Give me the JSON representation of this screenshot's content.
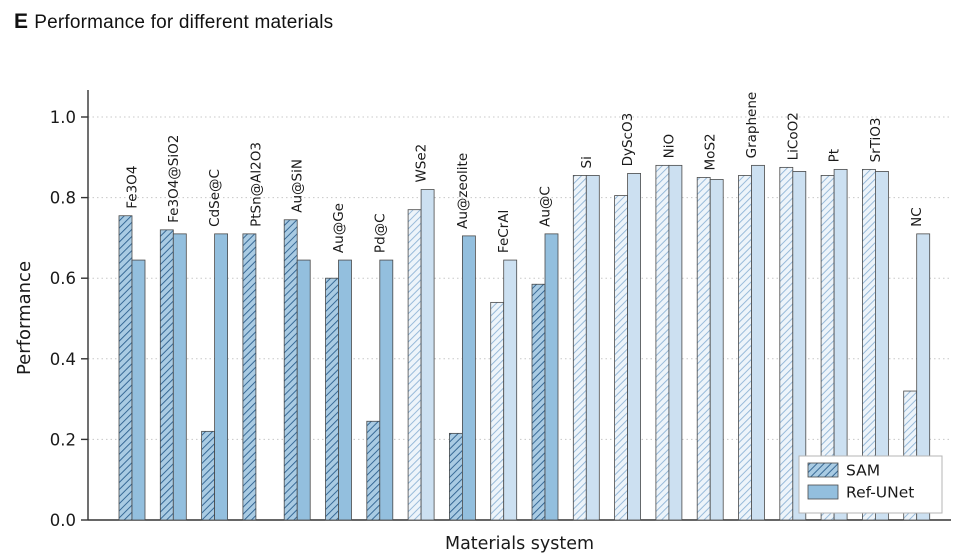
{
  "title": {
    "panel_label": "E",
    "text": "Performance for different materials"
  },
  "colors": {
    "dark_solid": "#93BFDE",
    "dark_hatch_bg": "#A9CBE3",
    "dark_hatch_line": "#2B5F8E",
    "light_solid": "#CCE0F1",
    "light_hatch_bg": "#EDF4FA",
    "light_hatch_line": "#8FB4D6",
    "bar_edge": "#4A4A4A",
    "grid": "#C8C8C8",
    "axis": "#333333",
    "text": "#1A1A1A",
    "legend_border": "#B5B5B5",
    "legend_bg": "#FFFFFF"
  },
  "chart_data": {
    "type": "bar",
    "title": "Performance for different materials",
    "xlabel": "Materials system",
    "ylabel": "Performance",
    "ylim": [
      0.0,
      1.05
    ],
    "yticks": [
      0.0,
      0.2,
      0.4,
      0.6,
      0.8,
      1.0
    ],
    "grid": "dotted-horizontal",
    "legend": {
      "position": "lower-right",
      "entries": [
        {
          "name": "SAM",
          "style": "hatched"
        },
        {
          "name": "Ref-UNet",
          "style": "solid"
        }
      ]
    },
    "categories": [
      "Fe3O4",
      "Fe3O4@SiO2",
      "CdSe@C",
      "PtSn@Al2O3",
      "Au@SiN",
      "Au@Ge",
      "Pd@C",
      "WSe2",
      "Au@zeolite",
      "FeCrAl",
      "Au@C",
      "Si",
      "DyScO3",
      "NiO",
      "MoS2",
      "Graphene",
      "LiCoO2",
      "Pt",
      "SrTiO3",
      "NC"
    ],
    "category_shades": [
      "dark",
      "dark",
      "dark",
      "dark",
      "dark",
      "dark",
      "dark",
      "light",
      "dark",
      "light",
      "dark",
      "light",
      "light",
      "light",
      "light",
      "light",
      "light",
      "light",
      "light",
      "light"
    ],
    "series": [
      {
        "name": "SAM",
        "values": [
          0.755,
          0.72,
          0.22,
          0.71,
          0.745,
          0.6,
          0.245,
          0.77,
          0.215,
          0.54,
          0.585,
          0.855,
          0.805,
          0.88,
          0.85,
          0.855,
          0.875,
          0.855,
          0.87,
          0.32
        ]
      },
      {
        "name": "Ref-UNet",
        "values": [
          0.645,
          0.71,
          0.71,
          null,
          0.645,
          0.645,
          0.645,
          0.82,
          0.705,
          0.645,
          0.71,
          0.855,
          0.86,
          0.88,
          0.845,
          0.88,
          0.865,
          0.87,
          0.865,
          0.71
        ]
      }
    ]
  }
}
